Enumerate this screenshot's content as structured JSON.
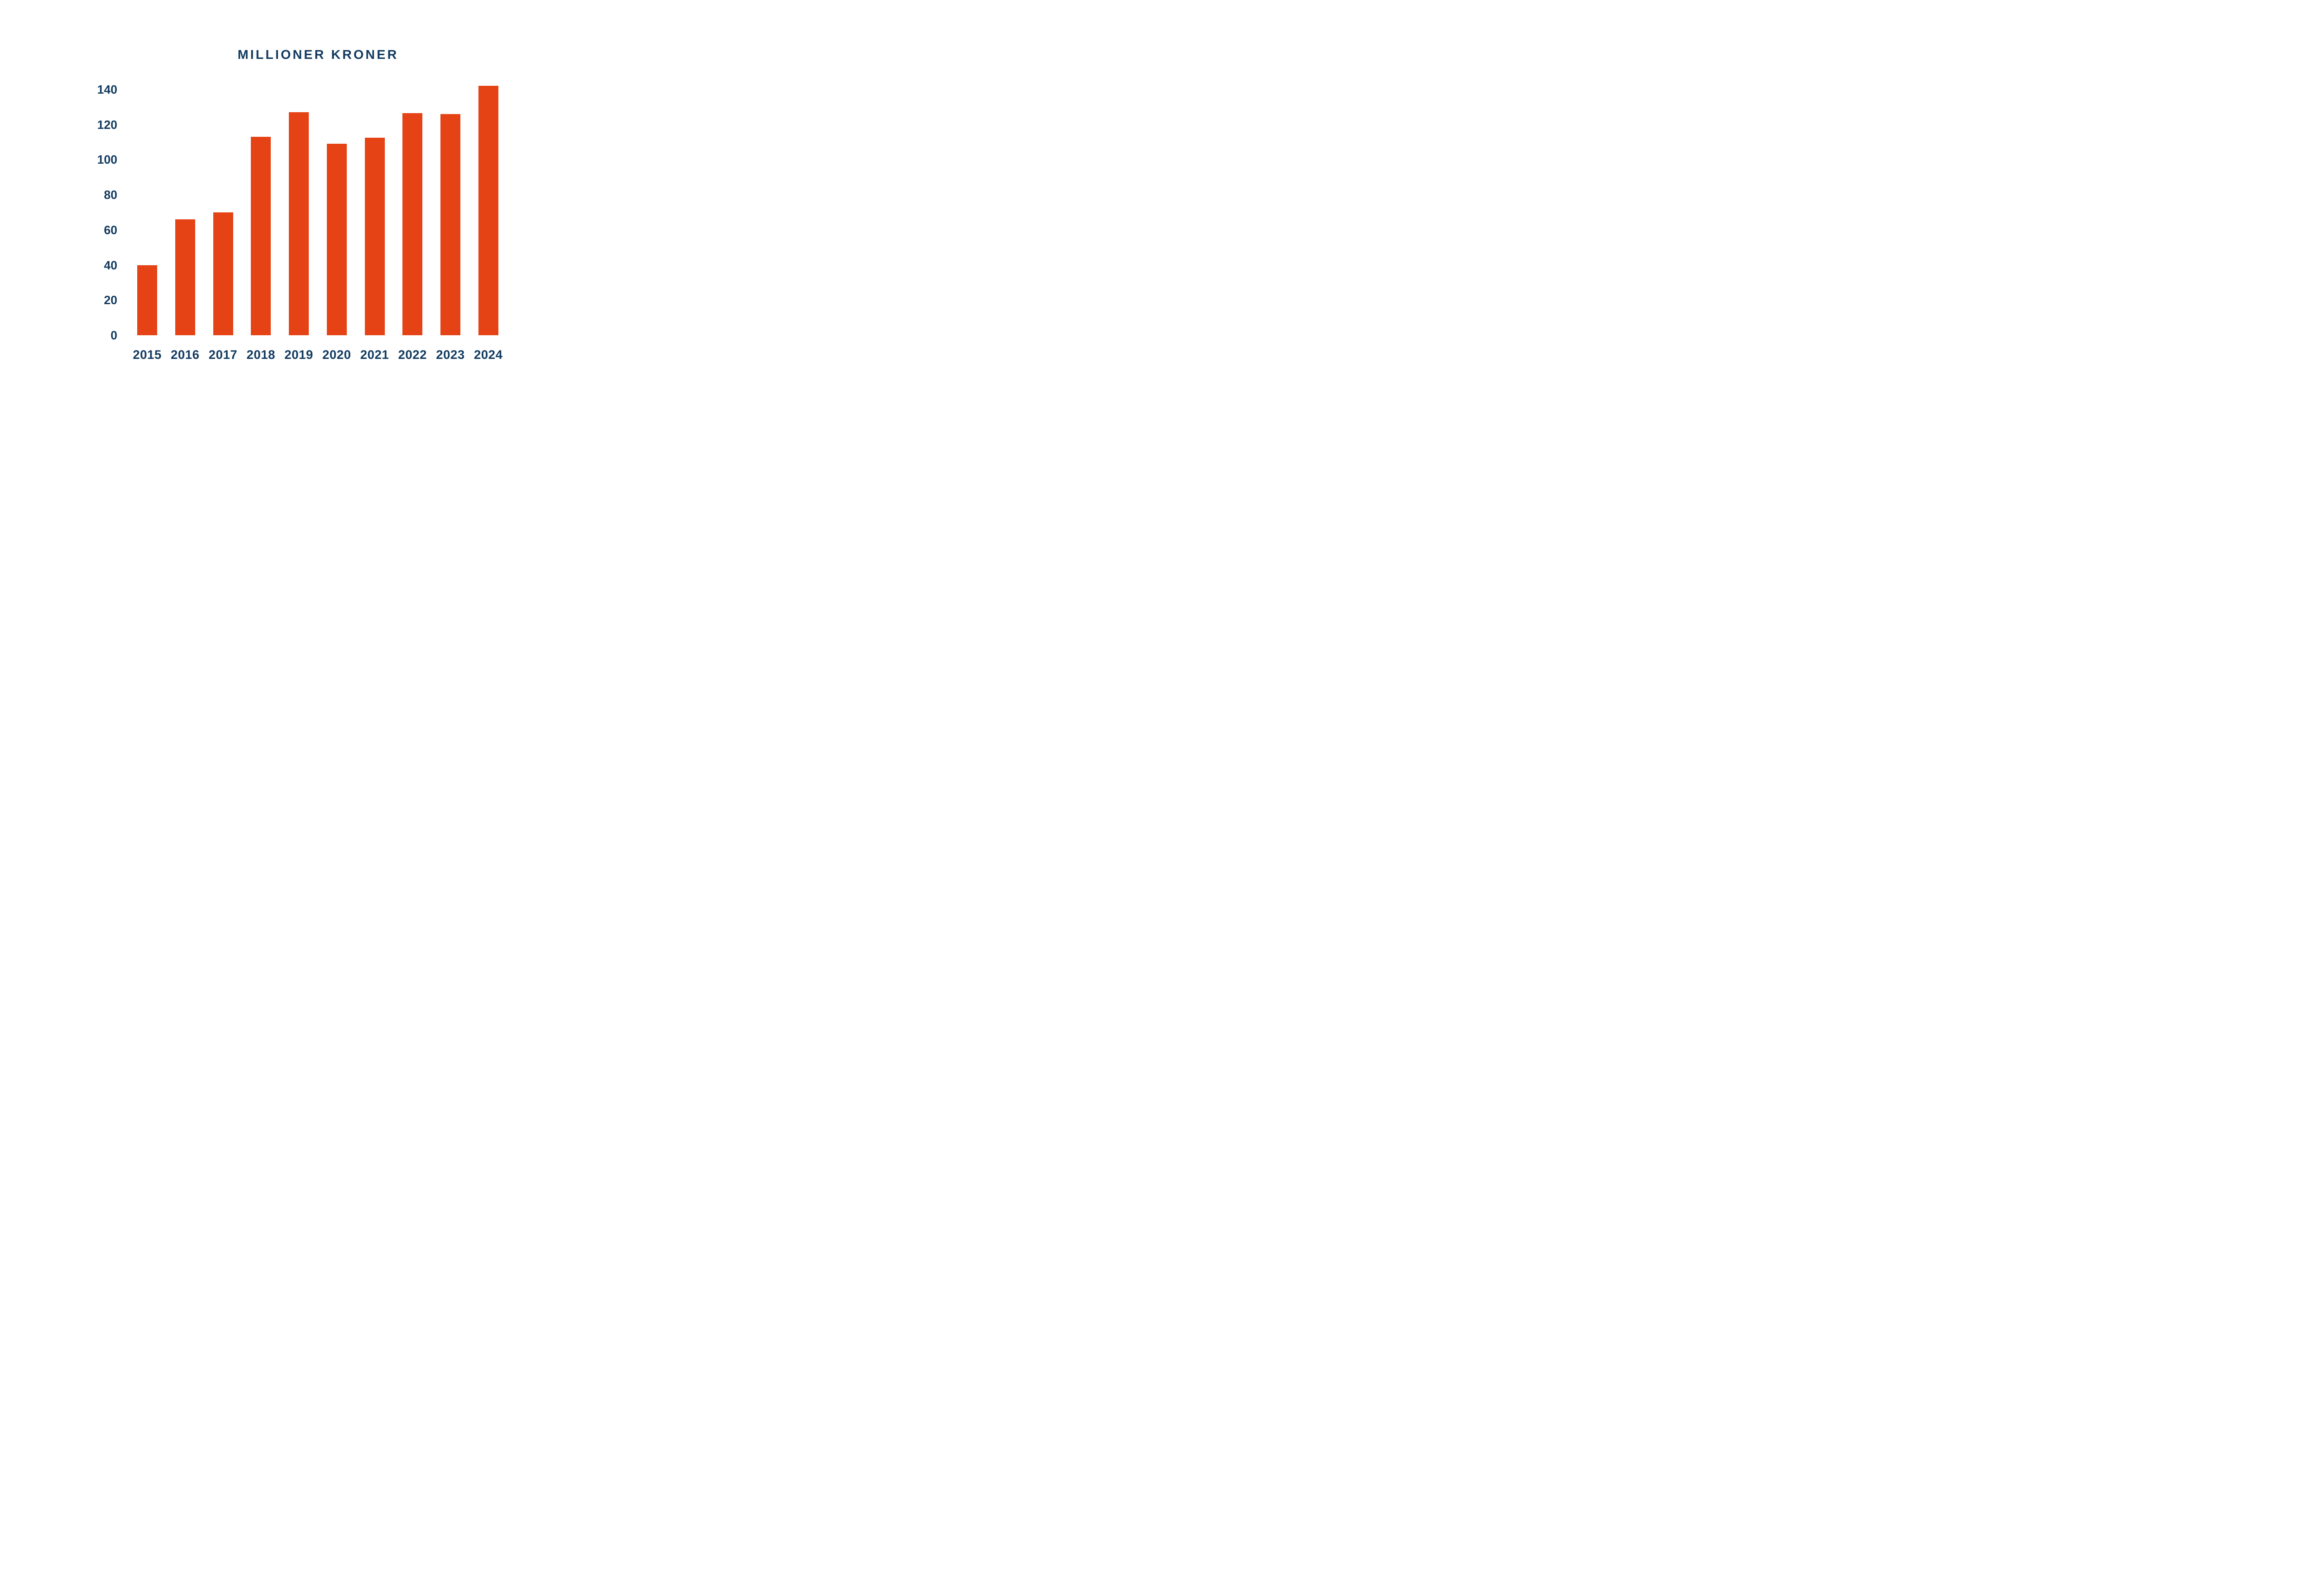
{
  "chart_data": {
    "type": "bar",
    "title": "MILLIONER KRONER",
    "categories": [
      "2015",
      "2016",
      "2017",
      "2018",
      "2019",
      "2020",
      "2021",
      "2022",
      "2023",
      "2024"
    ],
    "values": [
      40,
      66,
      70,
      113,
      127,
      109,
      112.5,
      126.5,
      126,
      142
    ],
    "xlabel": "",
    "ylabel": "",
    "yticks": [
      0,
      20,
      40,
      60,
      80,
      100,
      120,
      140
    ],
    "ylim": [
      0,
      150
    ],
    "grid": false,
    "legend_position": "none",
    "bar_color": "#E54315",
    "text_color": "#113A5F",
    "background_color": "#FFFFFF"
  }
}
